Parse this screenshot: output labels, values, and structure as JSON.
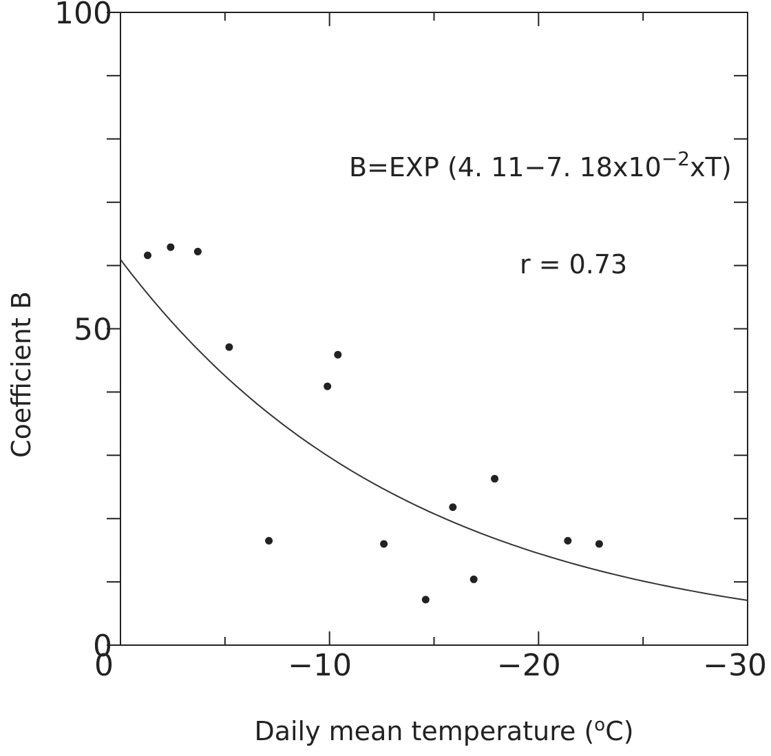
{
  "chart_data": {
    "type": "scatter",
    "xlabel": "Daily mean temperature (",
    "xlabel_sup": "o",
    "xlabel_end": "C)",
    "ylabel": "Coefficient B",
    "xlim": [
      0,
      -30
    ],
    "ylim": [
      0,
      100
    ],
    "x_ticks": [
      0,
      -10,
      -20,
      -30
    ],
    "x_tick_labels": [
      "0",
      "−10",
      "−20",
      "−30"
    ],
    "y_ticks": [
      0,
      50,
      100
    ],
    "y_tick_labels": [
      "0",
      "50",
      "100"
    ],
    "minor_y_ticks": [
      10,
      20,
      30,
      40,
      60,
      70,
      80,
      90
    ],
    "minor_x_ticks": [
      -5,
      -15,
      -25
    ],
    "grid": false,
    "points": [
      {
        "x": -1.3,
        "y": 61.6
      },
      {
        "x": -2.4,
        "y": 62.9
      },
      {
        "x": -3.7,
        "y": 62.2
      },
      {
        "x": -5.2,
        "y": 47.1
      },
      {
        "x": -7.1,
        "y": 16.5
      },
      {
        "x": -9.9,
        "y": 40.9
      },
      {
        "x": -10.4,
        "y": 45.9
      },
      {
        "x": -12.6,
        "y": 16.0
      },
      {
        "x": -14.6,
        "y": 7.2
      },
      {
        "x": -15.9,
        "y": 21.8
      },
      {
        "x": -16.9,
        "y": 10.4
      },
      {
        "x": -17.9,
        "y": 26.3
      },
      {
        "x": -21.4,
        "y": 16.5
      },
      {
        "x": -22.9,
        "y": 16.0
      }
    ],
    "fit": {
      "a": 4.11,
      "b": 0.0718,
      "x_range": [
        0,
        -30
      ]
    },
    "annotations": {
      "equation_main": "B=EXP (4. 11−7. 18x10",
      "equation_exp": "−2",
      "equation_end": "xT)",
      "r_text": "r  =  0.73"
    }
  }
}
